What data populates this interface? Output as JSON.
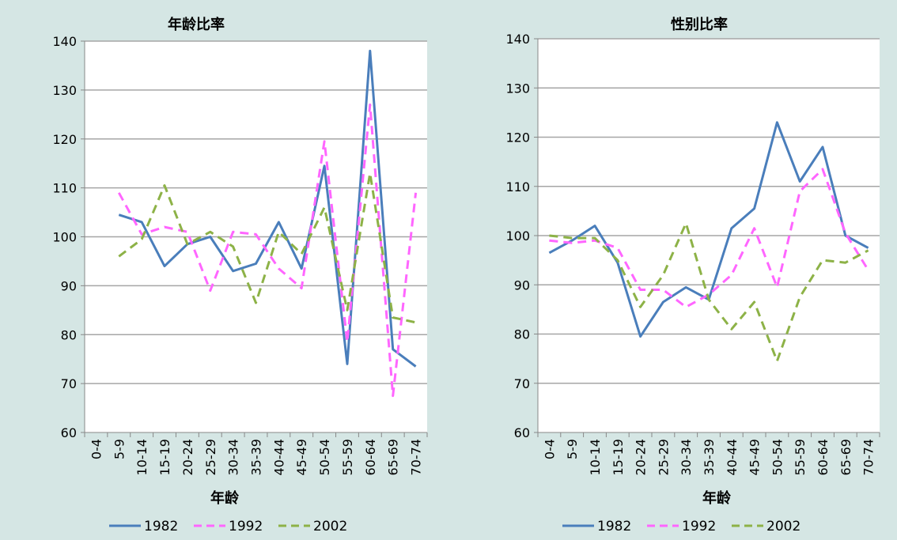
{
  "colors": {
    "s1982": "#4a7ebb",
    "s1992": "#ff66ff",
    "s2002": "#8db247",
    "plot_bg": "#ffffff",
    "grid": "#a6a6a6",
    "page_bg": "#d5e6e4"
  },
  "chart_data": [
    {
      "type": "line",
      "title": "年龄比率",
      "xlabel": "年龄",
      "ylabel": "",
      "ylim": [
        60,
        140
      ],
      "yticks": [
        60,
        70,
        80,
        90,
        100,
        110,
        120,
        130,
        140
      ],
      "grid": true,
      "legend": "bottom",
      "categories": [
        "0-4",
        "5-9",
        "10-14",
        "15-19",
        "20-24",
        "25-29",
        "30-34",
        "35-39",
        "40-44",
        "45-49",
        "50-54",
        "55-59",
        "60-64",
        "65-69",
        "70-74"
      ],
      "series": [
        {
          "name": "1982",
          "style": "solid",
          "values": [
            null,
            104.5,
            103,
            94,
            98.5,
            100,
            93,
            94.5,
            103,
            93.5,
            114.5,
            74,
            138,
            77,
            73.5
          ]
        },
        {
          "name": "1992",
          "style": "dashed",
          "values": [
            null,
            109,
            100.5,
            102,
            101,
            89,
            101,
            100.5,
            93.5,
            89.5,
            119.5,
            78.5,
            127,
            67.5,
            109
          ]
        },
        {
          "name": "2002",
          "style": "dashed",
          "values": [
            null,
            96,
            99.5,
            110.5,
            98.5,
            101,
            98,
            86.5,
            101,
            96.5,
            106,
            85,
            113,
            83.5,
            82.5
          ]
        }
      ]
    },
    {
      "type": "line",
      "title": "性别比率",
      "xlabel": "年龄",
      "ylabel": "",
      "ylim": [
        60,
        140
      ],
      "yticks": [
        60,
        70,
        80,
        90,
        100,
        110,
        120,
        130,
        140
      ],
      "grid": true,
      "legend": "bottom",
      "categories": [
        "0-4",
        "5-9",
        "10-14",
        "15-19",
        "20-24",
        "25-29",
        "30-34",
        "35-39",
        "40-44",
        "45-49",
        "50-54",
        "55-59",
        "60-64",
        "65-69",
        "70-74"
      ],
      "series": [
        {
          "name": "1982",
          "style": "solid",
          "values": [
            96.5,
            99,
            102,
            94.5,
            79.5,
            86.5,
            89.5,
            87,
            101.5,
            105.5,
            123,
            111,
            118,
            100,
            97.5
          ]
        },
        {
          "name": "1992",
          "style": "dashed",
          "values": [
            99,
            98.5,
            99,
            97.5,
            89,
            89,
            85.5,
            88,
            92,
            101.5,
            89.5,
            109,
            113.5,
            100.5,
            93
          ]
        },
        {
          "name": "2002",
          "style": "dashed",
          "values": [
            100,
            99.5,
            99.5,
            95,
            85.5,
            92,
            102.5,
            87,
            81,
            86.5,
            74.5,
            87.5,
            95,
            94.5,
            97
          ]
        }
      ]
    }
  ]
}
